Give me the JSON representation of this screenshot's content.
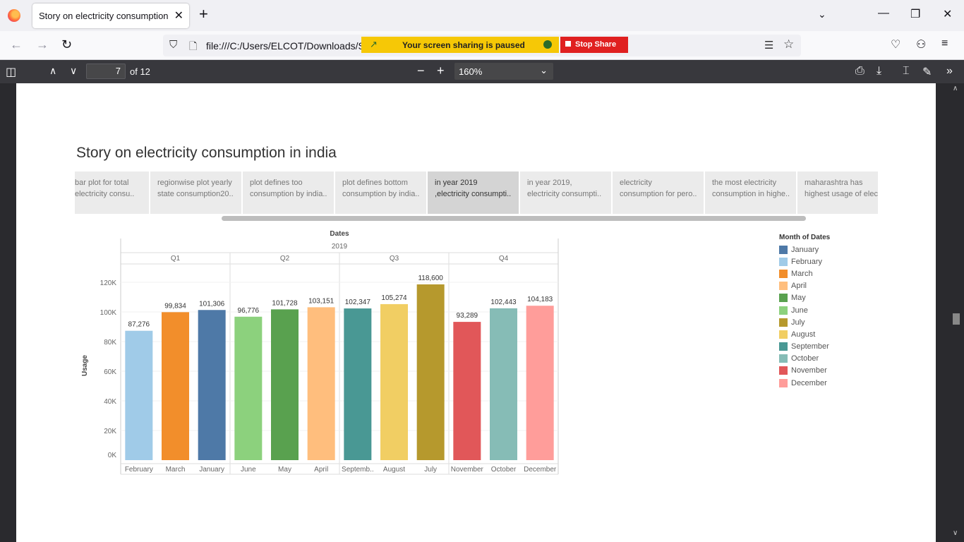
{
  "browser": {
    "tab_title": "Story on electricity consumption in india",
    "tab_close": "✕",
    "new_tab": "+",
    "url": "file:///C:/Users/ELCOT/Downloads/Story",
    "share_banner": "Your screen sharing is paused",
    "stop_share": "Stop Share"
  },
  "pdf_toolbar": {
    "page_number": "7",
    "page_of": "of 12",
    "zoom": "160%"
  },
  "story": {
    "title": "Story on electricity consumption in india",
    "captions": [
      {
        "line1": "bar plot for total",
        "line2": "electricity consu.."
      },
      {
        "line1": "regionwise plot yearly",
        "line2": "state consumption20.."
      },
      {
        "line1": "plot defines too",
        "line2": "consumption by india.."
      },
      {
        "line1": "plot defines bottom",
        "line2": "consumption by india.."
      },
      {
        "line1": "in year 2019",
        "line2": ",electricity consumpti.."
      },
      {
        "line1": "in year 2019,",
        "line2": "electricity consumpti.."
      },
      {
        "line1": "electricity",
        "line2": "consumption for pero.."
      },
      {
        "line1": "the most electricity",
        "line2": "consumption in highe.."
      },
      {
        "line1": "maharashtra has",
        "line2": "highest usage of elec.."
      }
    ]
  },
  "chart_data": {
    "type": "bar",
    "header": "Dates",
    "year": "2019",
    "quarters": [
      "Q1",
      "Q2",
      "Q3",
      "Q4"
    ],
    "categories": [
      "February",
      "March",
      "January",
      "June",
      "May",
      "April",
      "Septemb..",
      "August",
      "July",
      "November",
      "October",
      "December"
    ],
    "values": [
      87276,
      99834,
      101306,
      96776,
      101728,
      103151,
      102347,
      105274,
      118600,
      93289,
      102443,
      104183
    ],
    "value_labels": [
      "87,276",
      "99,834",
      "101,306",
      "96,776",
      "101,728",
      "103,151",
      "102,347",
      "105,274",
      "118,600",
      "93,289",
      "102,443",
      "104,183"
    ],
    "colors": [
      "#a0cbe8",
      "#f28e2b",
      "#4e79a7",
      "#8cd17d",
      "#59a14f",
      "#ffbe7d",
      "#499894",
      "#f1ce63",
      "#b6992d",
      "#e15759",
      "#86bcb6",
      "#ff9d9a"
    ],
    "ylabel": "Usage",
    "yticks": [
      0,
      20000,
      40000,
      60000,
      80000,
      100000,
      120000
    ],
    "ytick_labels": [
      "0K",
      "20K",
      "40K",
      "60K",
      "80K",
      "100K",
      "120K"
    ],
    "ylim": [
      0,
      125000
    ],
    "legend": {
      "title": "Month of Dates",
      "placement": "right",
      "items": [
        {
          "label": "January",
          "color": "#4e79a7"
        },
        {
          "label": "February",
          "color": "#a0cbe8"
        },
        {
          "label": "March",
          "color": "#f28e2b"
        },
        {
          "label": "April",
          "color": "#ffbe7d"
        },
        {
          "label": "May",
          "color": "#59a14f"
        },
        {
          "label": "June",
          "color": "#8cd17d"
        },
        {
          "label": "July",
          "color": "#b6992d"
        },
        {
          "label": "August",
          "color": "#f1ce63"
        },
        {
          "label": "September",
          "color": "#499894"
        },
        {
          "label": "October",
          "color": "#86bcb6"
        },
        {
          "label": "November",
          "color": "#e15759"
        },
        {
          "label": "December",
          "color": "#ff9d9a"
        }
      ]
    }
  }
}
